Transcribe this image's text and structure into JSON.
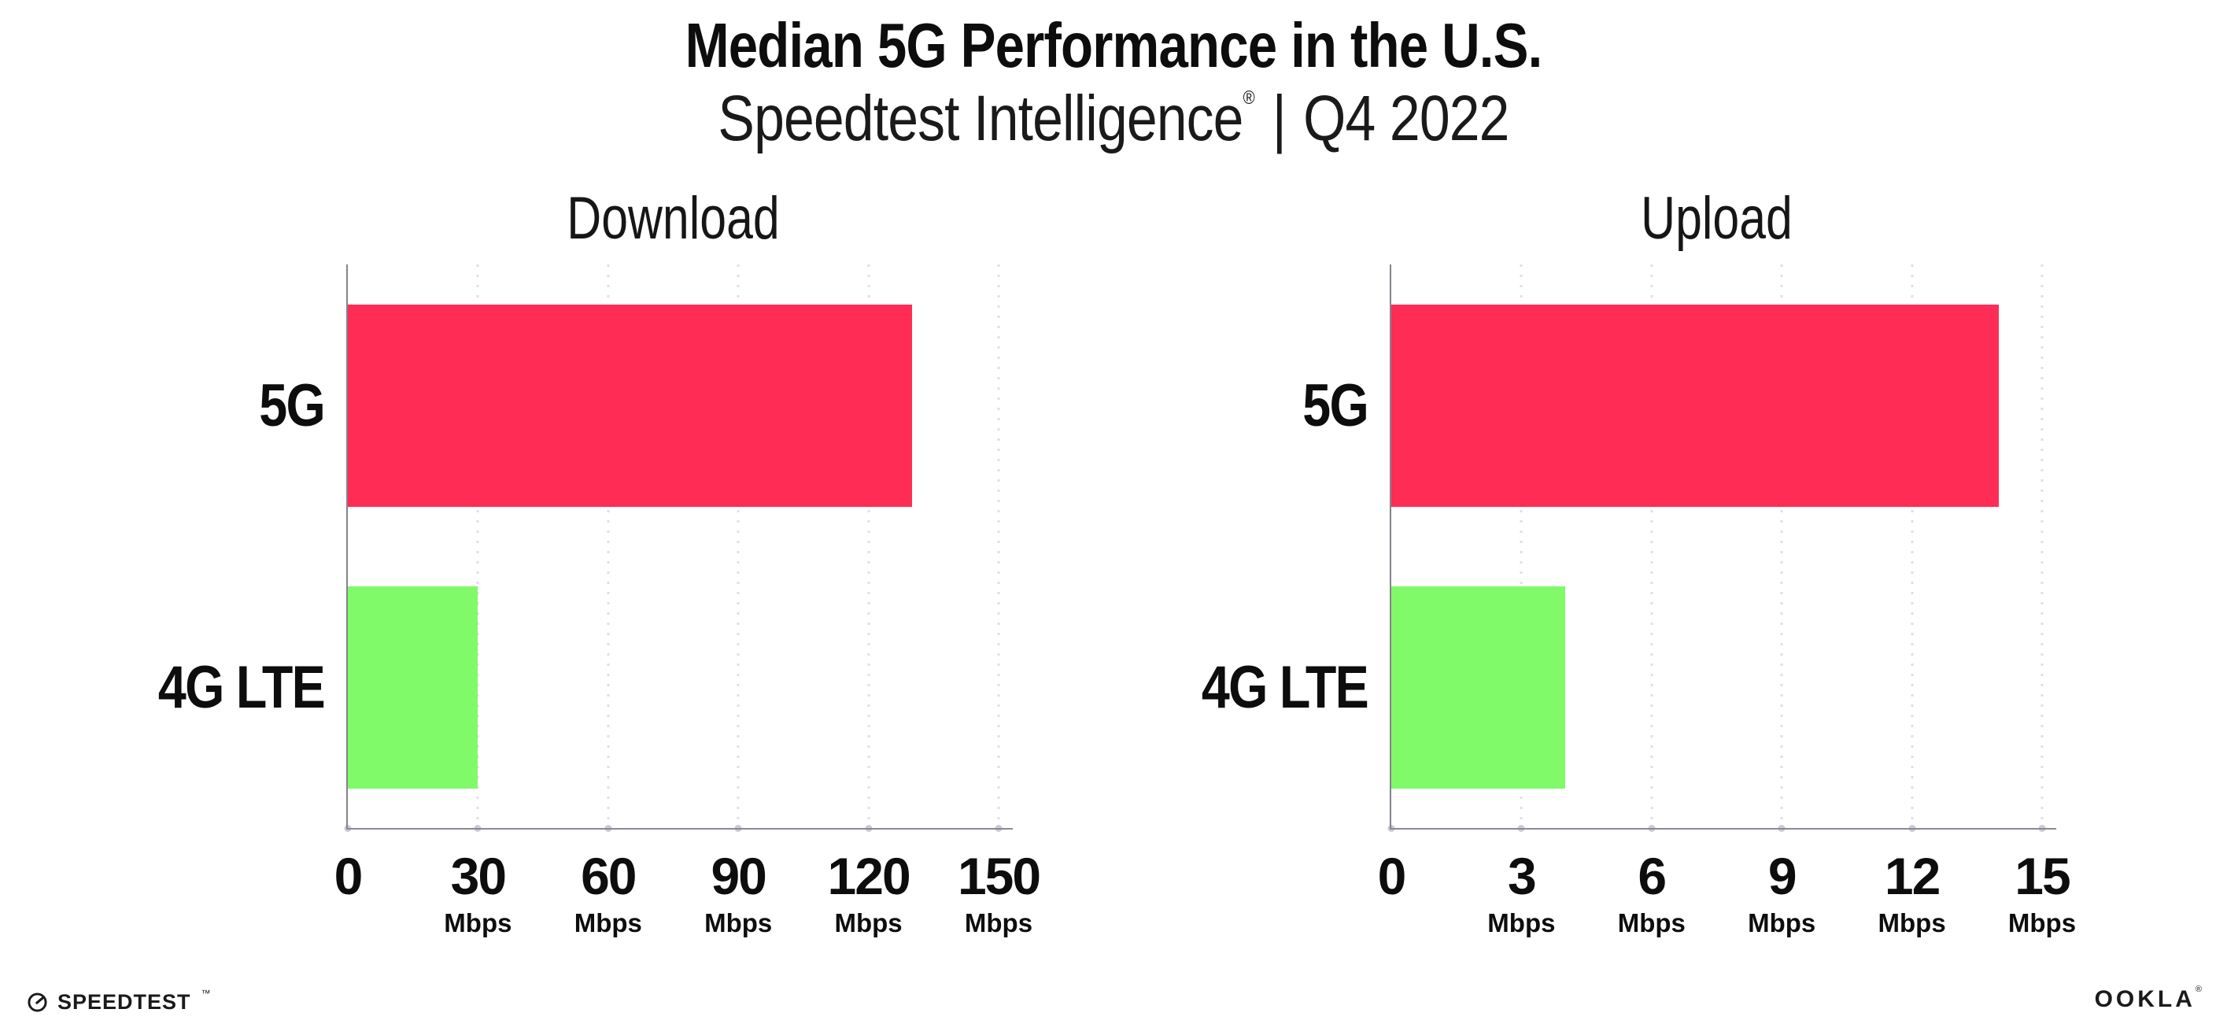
{
  "header": {
    "title": "Median 5G Performance in the U.S.",
    "subtitle": {
      "brand": "Speedtest Intelligence",
      "registered_mark": "®",
      "separator": "|",
      "period": "Q4 2022"
    }
  },
  "chart_data": [
    {
      "type": "bar",
      "orientation": "horizontal",
      "title": "Download",
      "categories": [
        "5G",
        "4G LTE"
      ],
      "values": [
        130,
        30
      ],
      "unit": "Mbps",
      "xlim": [
        0,
        150
      ],
      "xticks": [
        0,
        30,
        60,
        90,
        120,
        150
      ],
      "grid": "vertical-dotted",
      "legend": "none",
      "bar_colors": [
        "#FF2D55",
        "#80FA69"
      ]
    },
    {
      "type": "bar",
      "orientation": "horizontal",
      "title": "Upload",
      "categories": [
        "5G",
        "4G LTE"
      ],
      "values": [
        14,
        4
      ],
      "unit": "Mbps",
      "xlim": [
        0,
        15
      ],
      "xticks": [
        0,
        3,
        6,
        9,
        12,
        15
      ],
      "grid": "vertical-dotted",
      "legend": "none",
      "bar_colors": [
        "#FF2D55",
        "#80FA69"
      ]
    }
  ],
  "footer": {
    "speedtest_logo_text": "SPEEDTEST",
    "speedtest_trademark": "™",
    "ookla_logo_text": "OOKLA",
    "ookla_registered": "®"
  },
  "colors": {
    "bar_5g": "#FF2D55",
    "bar_4g_lte": "#80FA69",
    "axis_line": "#8A8A93",
    "gridline_dots": "#DFDFEA",
    "tick_dots": "#CACAD8",
    "text": "#111111",
    "background": "#FFFFFF"
  }
}
